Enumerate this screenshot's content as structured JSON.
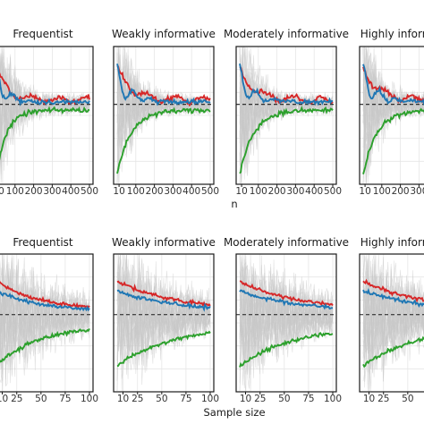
{
  "colors": {
    "red": "#d62728",
    "blue": "#1f77b4",
    "green": "#2ca02c",
    "gray_band": "#c8c8c8",
    "grid": "#e6e6e6",
    "frame": "#1a1a1a",
    "reference": "#1a1a1a"
  },
  "chart_data": [
    {
      "type": "line",
      "row": 1,
      "facet_labels": [
        "Frequentist",
        "Weakly informative",
        "Moderately informative",
        "Highly informative"
      ],
      "xlabel": "n",
      "xlim": [
        0,
        500
      ],
      "x_ticks": [
        10,
        100,
        200,
        300,
        400,
        500
      ],
      "x_tick_labels": [
        "10",
        "100",
        "200",
        "300",
        "400",
        "500"
      ],
      "reference_line": "dashed",
      "grid": true,
      "series": [
        {
          "color": "red"
        },
        {
          "color": "blue"
        },
        {
          "color": "green"
        }
      ]
    },
    {
      "type": "line",
      "row": 2,
      "facet_labels": [
        "Frequentist",
        "Weakly informative",
        "Moderately informative",
        "Highly informative"
      ],
      "xlabel": "Sample size",
      "xlim": [
        4,
        100
      ],
      "x_ticks": [
        10,
        25,
        50,
        75,
        100
      ],
      "x_tick_labels": [
        "10",
        "25",
        "50",
        "75",
        "100"
      ],
      "reference_line": "dashed",
      "grid": true,
      "series": [
        {
          "color": "red"
        },
        {
          "color": "blue"
        },
        {
          "color": "green"
        }
      ]
    }
  ]
}
